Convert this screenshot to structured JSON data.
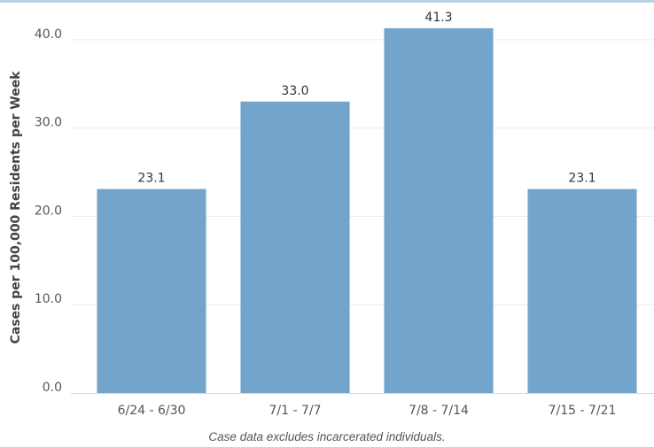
{
  "chart_data": {
    "type": "bar",
    "categories": [
      "6/24 - 6/30",
      "7/1 - 7/7",
      "7/8 - 7/14",
      "7/15 - 7/21"
    ],
    "values": [
      23.1,
      33.0,
      41.3,
      23.1
    ],
    "value_labels": [
      "23.1",
      "33.0",
      "41.3",
      "23.1"
    ],
    "ylabel": "Cases per 100,000 Residents per Week",
    "ytick_labels": [
      "0.0",
      "10.0",
      "20.0",
      "30.0",
      "40.0"
    ],
    "ylim": [
      0,
      44
    ],
    "grid": true,
    "bar_color": "#73a4cc"
  },
  "footnote": "Case data excludes incarcerated individuals."
}
